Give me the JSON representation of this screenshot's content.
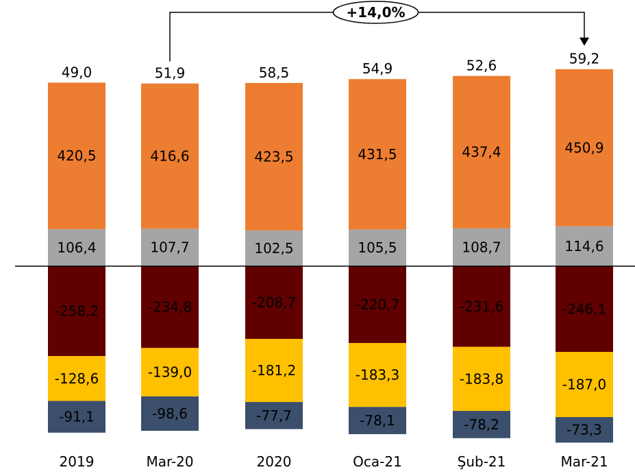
{
  "chart_data": {
    "type": "bar",
    "stacked": true,
    "categories": [
      "2019",
      "Mar-20",
      "2020",
      "Oca-21",
      "Şub-21",
      "Mar-21"
    ],
    "series": [
      {
        "label_texts": [
          "106,4",
          "107,7",
          "102,5",
          "105,5",
          "108,7",
          "114,6"
        ],
        "values": [
          106.4,
          107.7,
          102.5,
          105.5,
          108.7,
          114.6
        ],
        "color": "#A5A5A5",
        "label_color": "#000000"
      },
      {
        "label_texts": [
          "420,5",
          "416,6",
          "423,5",
          "431,5",
          "437,4",
          "450,9"
        ],
        "values": [
          420.5,
          416.6,
          423.5,
          431.5,
          437.4,
          450.9
        ],
        "color": "#ED7D31",
        "label_color": "#000000"
      },
      {
        "label_texts": [
          "49,0",
          "51,9",
          "58,5",
          "54,9",
          "52,6",
          "59,2"
        ],
        "values": [
          49.0,
          51.9,
          58.5,
          54.9,
          52.6,
          59.2
        ],
        "color": "#ffffff",
        "label_color": "#000000"
      },
      {
        "label_texts": [
          "-258,2",
          "-234,8",
          "-208,7",
          "-220,7",
          "-231,6",
          "-246,1"
        ],
        "values": [
          -258.2,
          -234.8,
          -208.7,
          -220.7,
          -231.6,
          -246.1
        ],
        "color": "#600000",
        "label_color": "#ffffff"
      },
      {
        "label_texts": [
          "-128,6",
          "-139,0",
          "-181,2",
          "-183,3",
          "-183,8",
          "-187,0"
        ],
        "values": [
          -128.6,
          -139.0,
          -181.2,
          -183.3,
          -183.8,
          -187.0
        ],
        "color": "#FFC000",
        "label_color": "#000000"
      },
      {
        "label_texts": [
          "-91,1",
          "-98,6",
          "-77,7",
          "-78,1",
          "-78,2",
          "-73,3"
        ],
        "values": [
          -91.1,
          -98.6,
          -77.7,
          -78.1,
          -78.2,
          -73.3
        ],
        "color": "#3B4E6B",
        "label_color": "#ffffff"
      }
    ],
    "annotation": {
      "text": "+14,0%",
      "from": "Mar-20",
      "to": "Mar-21"
    },
    "grid": false,
    "legend": "none"
  }
}
